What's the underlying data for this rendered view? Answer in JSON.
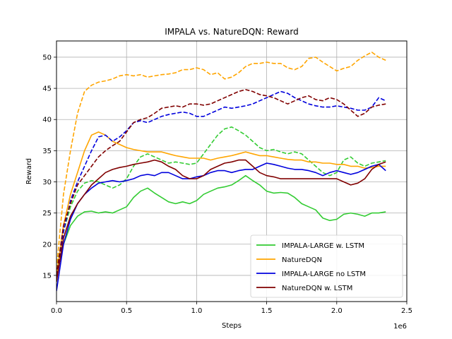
{
  "chart_data": {
    "type": "line",
    "title": "IMPALA vs. NatureDQN: Reward",
    "xlabel": "Steps",
    "ylabel": "Reward",
    "x_offset_text": "1e6",
    "xlim": [
      0,
      2500000
    ],
    "ylim": [
      10.8,
      52.6
    ],
    "xticks": [
      0,
      500000,
      1000000,
      1500000,
      2000000,
      2500000
    ],
    "xtick_labels": [
      "0.0",
      "0.5",
      "1.0",
      "1.5",
      "2.0",
      "2.5"
    ],
    "yticks": [
      15,
      20,
      25,
      30,
      35,
      40,
      45,
      50
    ],
    "ytick_labels": [
      "15",
      "20",
      "25",
      "30",
      "35",
      "40",
      "45",
      "50"
    ],
    "grid": true,
    "legend_position": "lower-right",
    "legend": [
      "IMPALA-LARGE w. LSTM",
      "NatureDQN",
      "IMPALA-LARGE no LSTM",
      "NatureDQN w. LSTM"
    ],
    "colors": {
      "impala_lstm": "#33cc33",
      "naturedqn": "#ffa500",
      "impala_no_lstm": "#0000dd",
      "naturedqn_lstm": "#800000"
    },
    "series": [
      {
        "name": "IMPALA-LARGE w. LSTM",
        "color": "#33cc33",
        "dashed": false,
        "x": [
          0,
          50000,
          100000,
          150000,
          200000,
          250000,
          300000,
          350000,
          400000,
          450000,
          500000,
          550000,
          600000,
          650000,
          700000,
          750000,
          800000,
          850000,
          900000,
          950000,
          1000000,
          1050000,
          1100000,
          1150000,
          1200000,
          1250000,
          1300000,
          1350000,
          1400000,
          1450000,
          1500000,
          1550000,
          1600000,
          1650000,
          1700000,
          1750000,
          1800000,
          1850000,
          1900000,
          1950000,
          2000000,
          2050000,
          2100000,
          2150000,
          2200000,
          2250000,
          2300000,
          2350000
        ],
        "y": [
          15,
          20,
          23,
          24.5,
          25.2,
          25.3,
          25.0,
          25.2,
          25.0,
          25.5,
          26,
          27.5,
          28.5,
          29.0,
          28.2,
          27.5,
          26.8,
          26.5,
          26.8,
          26.5,
          27,
          28,
          28.5,
          29,
          29.2,
          29.5,
          30.2,
          31,
          30.2,
          29.5,
          28.5,
          28.2,
          28.3,
          28.2,
          27.5,
          26.5,
          26,
          25.5,
          24.2,
          23.8,
          24,
          24.8,
          25,
          24.8,
          24.5,
          25,
          25,
          25.2
        ]
      },
      {
        "name": "IMPALA-LARGE w. LSTM (dashed)",
        "color": "#33cc33",
        "dashed": true,
        "x": [
          0,
          50000,
          100000,
          150000,
          200000,
          250000,
          300000,
          350000,
          400000,
          450000,
          500000,
          550000,
          600000,
          650000,
          700000,
          750000,
          800000,
          850000,
          900000,
          950000,
          1000000,
          1050000,
          1100000,
          1150000,
          1200000,
          1250000,
          1300000,
          1350000,
          1400000,
          1450000,
          1500000,
          1550000,
          1600000,
          1650000,
          1700000,
          1750000,
          1800000,
          1850000,
          1900000,
          1950000,
          2000000,
          2050000,
          2100000,
          2150000,
          2200000,
          2250000,
          2300000,
          2350000
        ],
        "y": [
          16,
          22,
          26,
          28.5,
          29.8,
          30.2,
          30.0,
          29.5,
          29.0,
          29.5,
          30.5,
          32.5,
          34,
          34.5,
          34,
          33.5,
          33,
          33.2,
          33,
          32.8,
          33,
          34.5,
          36,
          37.5,
          38.5,
          38.8,
          38.2,
          37.5,
          36.5,
          35.5,
          35,
          35.2,
          34.8,
          34.5,
          34.8,
          34.5,
          33.5,
          32.5,
          31.5,
          31.0,
          31.5,
          33.5,
          34,
          33,
          32.5,
          33,
          33.2,
          33.4
        ]
      },
      {
        "name": "NatureDQN",
        "color": "#ffa500",
        "dashed": false,
        "x": [
          0,
          50000,
          100000,
          150000,
          200000,
          250000,
          300000,
          350000,
          400000,
          450000,
          500000,
          550000,
          600000,
          650000,
          700000,
          750000,
          800000,
          850000,
          900000,
          950000,
          1000000,
          1050000,
          1100000,
          1150000,
          1200000,
          1250000,
          1300000,
          1350000,
          1400000,
          1450000,
          1500000,
          1550000,
          1600000,
          1650000,
          1700000,
          1750000,
          1800000,
          1850000,
          1900000,
          1950000,
          2000000,
          2050000,
          2100000,
          2150000,
          2200000,
          2250000,
          2300000,
          2350000
        ],
        "y": [
          15,
          23,
          28,
          31.5,
          35,
          37.5,
          38,
          37.5,
          36.5,
          36,
          35.5,
          35.2,
          35,
          34.8,
          34.8,
          34.8,
          34.5,
          34.2,
          34,
          33.8,
          33.8,
          33.8,
          33.5,
          33.8,
          34,
          34.2,
          34.5,
          34.8,
          34.5,
          34.2,
          34.2,
          34.0,
          33.8,
          33.6,
          33.5,
          33.5,
          33.2,
          33.2,
          33.0,
          33.0,
          32.8,
          32.8,
          32.5,
          32.5,
          32.2,
          32.3,
          32.5,
          32.5
        ]
      },
      {
        "name": "NatureDQN (dashed)",
        "color": "#ffa500",
        "dashed": true,
        "x": [
          0,
          50000,
          100000,
          150000,
          200000,
          250000,
          300000,
          350000,
          400000,
          450000,
          500000,
          550000,
          600000,
          650000,
          700000,
          750000,
          800000,
          850000,
          900000,
          950000,
          1000000,
          1050000,
          1100000,
          1150000,
          1200000,
          1250000,
          1300000,
          1350000,
          1400000,
          1450000,
          1500000,
          1550000,
          1600000,
          1650000,
          1700000,
          1750000,
          1800000,
          1850000,
          1900000,
          1950000,
          2000000,
          2050000,
          2100000,
          2150000,
          2200000,
          2250000,
          2300000,
          2350000
        ],
        "y": [
          16,
          28,
          35,
          41,
          44.5,
          45.5,
          46,
          46.2,
          46.5,
          47,
          47.2,
          47.0,
          47.2,
          46.8,
          47.0,
          47.2,
          47.3,
          47.5,
          48,
          48,
          48.3,
          48,
          47.2,
          47.5,
          46.5,
          46.8,
          47.5,
          48.5,
          49,
          49,
          49.2,
          49,
          49,
          48.3,
          48,
          48.5,
          49.8,
          50,
          49.2,
          48.5,
          47.8,
          48.2,
          48.5,
          49.5,
          50.2,
          50.8,
          50.0,
          49.5
        ]
      },
      {
        "name": "IMPALA-LARGE no LSTM",
        "color": "#0000dd",
        "dashed": false,
        "x": [
          0,
          50000,
          100000,
          150000,
          200000,
          250000,
          300000,
          350000,
          400000,
          450000,
          500000,
          550000,
          600000,
          650000,
          700000,
          750000,
          800000,
          850000,
          900000,
          950000,
          1000000,
          1050000,
          1100000,
          1150000,
          1200000,
          1250000,
          1300000,
          1350000,
          1400000,
          1450000,
          1500000,
          1550000,
          1600000,
          1650000,
          1700000,
          1750000,
          1800000,
          1850000,
          1900000,
          1950000,
          2000000,
          2050000,
          2100000,
          2150000,
          2200000,
          2250000,
          2300000,
          2350000
        ],
        "y": [
          12.5,
          20,
          24,
          26.5,
          28,
          29,
          29.8,
          30.0,
          30.2,
          30.0,
          30.2,
          30.5,
          31.0,
          31.2,
          31.0,
          31.5,
          31.5,
          31.0,
          30.5,
          30.5,
          30.8,
          31.0,
          31.5,
          31.8,
          31.8,
          31.5,
          31.8,
          32.0,
          32.0,
          32.5,
          33.0,
          32.8,
          32.5,
          32.2,
          32.0,
          32.0,
          31.8,
          31.5,
          31.0,
          31.5,
          31.8,
          31.5,
          31.2,
          31.5,
          32.0,
          32.5,
          32.8,
          31.8
        ]
      },
      {
        "name": "IMPALA-LARGE no LSTM (dashed)",
        "color": "#0000dd",
        "dashed": true,
        "x": [
          0,
          50000,
          100000,
          150000,
          200000,
          250000,
          300000,
          350000,
          400000,
          450000,
          500000,
          550000,
          600000,
          650000,
          700000,
          750000,
          800000,
          850000,
          900000,
          950000,
          1000000,
          1050000,
          1100000,
          1150000,
          1200000,
          1250000,
          1300000,
          1350000,
          1400000,
          1450000,
          1500000,
          1550000,
          1600000,
          1650000,
          1700000,
          1750000,
          1800000,
          1850000,
          1900000,
          1950000,
          2000000,
          2050000,
          2100000,
          2150000,
          2200000,
          2250000,
          2300000,
          2350000
        ],
        "y": [
          14,
          22,
          27,
          30,
          32.5,
          35,
          37.2,
          37.5,
          36.5,
          37.2,
          38.2,
          39.5,
          39.8,
          39.5,
          40,
          40.5,
          40.8,
          41,
          41.2,
          41,
          40.5,
          40.5,
          41,
          41.5,
          42,
          41.8,
          42,
          42.2,
          42.5,
          43,
          43.5,
          44,
          44.5,
          44.2,
          43.5,
          43,
          42.5,
          42.2,
          42.0,
          42,
          42.2,
          42.0,
          41.8,
          41.5,
          41.5,
          42,
          43.5,
          43
        ]
      },
      {
        "name": "NatureDQN w. LSTM",
        "color": "#800000",
        "dashed": false,
        "x": [
          0,
          50000,
          100000,
          150000,
          200000,
          250000,
          300000,
          350000,
          400000,
          450000,
          500000,
          550000,
          600000,
          650000,
          700000,
          750000,
          800000,
          850000,
          900000,
          950000,
          1000000,
          1050000,
          1100000,
          1150000,
          1200000,
          1250000,
          1300000,
          1350000,
          1400000,
          1450000,
          1500000,
          1550000,
          1600000,
          1650000,
          1700000,
          1750000,
          1800000,
          1850000,
          1900000,
          1950000,
          2000000,
          2050000,
          2100000,
          2150000,
          2200000,
          2250000,
          2300000,
          2350000
        ],
        "y": [
          14,
          21,
          24.5,
          26.5,
          28,
          29.5,
          30.5,
          31.5,
          32,
          32.3,
          32.5,
          32.8,
          33.0,
          33.2,
          33.5,
          33.2,
          32.5,
          32.0,
          31.0,
          30.5,
          30.5,
          31.0,
          32.0,
          32.5,
          33.0,
          33.2,
          33.5,
          33.5,
          32.5,
          31.5,
          31.0,
          30.8,
          30.5,
          30.5,
          30.5,
          30.5,
          30.5,
          30.5,
          30.5,
          30.5,
          30.5,
          30.0,
          29.5,
          29.8,
          30.5,
          32.0,
          32.8,
          33.2
        ]
      },
      {
        "name": "NatureDQN w. LSTM (dashed)",
        "color": "#800000",
        "dashed": true,
        "x": [
          0,
          50000,
          100000,
          150000,
          200000,
          250000,
          300000,
          350000,
          400000,
          450000,
          500000,
          550000,
          600000,
          650000,
          700000,
          750000,
          800000,
          850000,
          900000,
          950000,
          1000000,
          1050000,
          1100000,
          1150000,
          1200000,
          1250000,
          1300000,
          1350000,
          1400000,
          1450000,
          1500000,
          1550000,
          1600000,
          1650000,
          1700000,
          1750000,
          1800000,
          1850000,
          1900000,
          1950000,
          2000000,
          2050000,
          2100000,
          2150000,
          2200000,
          2250000,
          2300000,
          2350000
        ],
        "y": [
          15,
          23,
          26.5,
          29.5,
          31,
          32.5,
          34,
          35,
          35.8,
          36.5,
          38,
          39.5,
          40,
          40.3,
          41,
          41.8,
          42,
          42.2,
          42.0,
          42.5,
          42.5,
          42.3,
          42.5,
          43,
          43.5,
          44,
          44.5,
          44.8,
          44.5,
          44,
          43.8,
          43.5,
          43,
          42.5,
          43.0,
          43.5,
          43.8,
          43.2,
          43.0,
          43.5,
          43.2,
          42.5,
          41.5,
          40.5,
          41.0,
          42.0,
          42.3,
          42.5
        ]
      }
    ]
  }
}
